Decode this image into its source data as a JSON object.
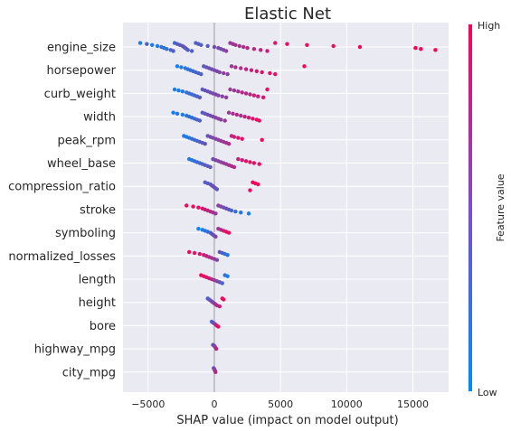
{
  "chart_data": {
    "type": "scatter",
    "title": "Elastic Net",
    "xlabel": "SHAP value (impact on model output)",
    "xlim": [
      -6900,
      17700
    ],
    "xticks": [
      -5000,
      0,
      5000,
      10000,
      15000
    ],
    "xtick_labels": [
      "−5000",
      "0",
      "5000",
      "10000",
      "15000"
    ],
    "grid": true,
    "colorbar": {
      "label": "Feature value",
      "high_label": "High",
      "low_label": "Low",
      "low_color": "#008bfb",
      "high_color": "#ff0052"
    },
    "features": [
      {
        "name": "engine_size",
        "points": [
          [
            -5600,
            0.1
          ],
          [
            -5100,
            0.3
          ],
          [
            -4700,
            0.1
          ],
          [
            -4300,
            0.1
          ],
          [
            -4000,
            0.2
          ],
          [
            -3800,
            0.15
          ],
          [
            -3600,
            0.2
          ],
          [
            -3300,
            0.3
          ],
          [
            -3100,
            0.3
          ],
          [
            -3000,
            0.2
          ],
          [
            -2800,
            0.35
          ],
          [
            -2600,
            0.35
          ],
          [
            -2400,
            0.4
          ],
          [
            -2300,
            0.4
          ],
          [
            -2200,
            0.4
          ],
          [
            -2100,
            0.3
          ],
          [
            -2000,
            0.35
          ],
          [
            -1700,
            0.3
          ],
          [
            -1400,
            0.3
          ],
          [
            -1200,
            0.35
          ],
          [
            -1000,
            0.3
          ],
          [
            -500,
            0.35
          ],
          [
            0,
            0.45
          ],
          [
            300,
            0.45
          ],
          [
            500,
            0.45
          ],
          [
            700,
            0.5
          ],
          [
            900,
            0.55
          ],
          [
            1200,
            0.6
          ],
          [
            1400,
            0.6
          ],
          [
            1600,
            0.65
          ],
          [
            1900,
            0.65
          ],
          [
            2200,
            0.65
          ],
          [
            2500,
            0.7
          ],
          [
            3000,
            0.75
          ],
          [
            3500,
            0.75
          ],
          [
            4000,
            0.8
          ],
          [
            4600,
            0.85
          ],
          [
            5500,
            0.9
          ],
          [
            7000,
            0.9
          ],
          [
            9000,
            0.95
          ],
          [
            11000,
            0.95
          ],
          [
            15200,
            1.0
          ],
          [
            15600,
            1.0
          ],
          [
            16700,
            1.0
          ]
        ]
      },
      {
        "name": "horsepower",
        "points": [
          [
            -2800,
            0.1
          ],
          [
            -2500,
            0.1
          ],
          [
            -2200,
            0.15
          ],
          [
            -2000,
            0.2
          ],
          [
            -1800,
            0.2
          ],
          [
            -1600,
            0.25
          ],
          [
            -1400,
            0.25
          ],
          [
            -1200,
            0.3
          ],
          [
            -1000,
            0.3
          ],
          [
            -800,
            0.35
          ],
          [
            -600,
            0.4
          ],
          [
            -400,
            0.4
          ],
          [
            -200,
            0.45
          ],
          [
            0,
            0.45
          ],
          [
            200,
            0.5
          ],
          [
            400,
            0.5
          ],
          [
            700,
            0.55
          ],
          [
            1000,
            0.55
          ],
          [
            1300,
            0.6
          ],
          [
            1600,
            0.65
          ],
          [
            2000,
            0.7
          ],
          [
            2400,
            0.75
          ],
          [
            2800,
            0.75
          ],
          [
            3200,
            0.8
          ],
          [
            3600,
            0.85
          ],
          [
            4200,
            0.9
          ],
          [
            4600,
            0.9
          ],
          [
            6800,
            1.0
          ]
        ]
      },
      {
        "name": "curb_weight",
        "points": [
          [
            -3000,
            0.1
          ],
          [
            -2700,
            0.1
          ],
          [
            -2400,
            0.15
          ],
          [
            -2100,
            0.2
          ],
          [
            -1900,
            0.2
          ],
          [
            -1700,
            0.25
          ],
          [
            -1500,
            0.25
          ],
          [
            -1300,
            0.3
          ],
          [
            -1100,
            0.35
          ],
          [
            -900,
            0.35
          ],
          [
            -700,
            0.4
          ],
          [
            -500,
            0.4
          ],
          [
            -300,
            0.45
          ],
          [
            -100,
            0.45
          ],
          [
            100,
            0.5
          ],
          [
            300,
            0.5
          ],
          [
            600,
            0.55
          ],
          [
            900,
            0.55
          ],
          [
            1200,
            0.6
          ],
          [
            1500,
            0.6
          ],
          [
            1800,
            0.65
          ],
          [
            2100,
            0.7
          ],
          [
            2400,
            0.7
          ],
          [
            2700,
            0.75
          ],
          [
            3000,
            0.8
          ],
          [
            3300,
            0.8
          ],
          [
            3700,
            0.85
          ],
          [
            4000,
            0.9
          ]
        ]
      },
      {
        "name": "width",
        "points": [
          [
            -3100,
            0.1
          ],
          [
            -2800,
            0.15
          ],
          [
            -2400,
            0.1
          ],
          [
            -2100,
            0.15
          ],
          [
            -1900,
            0.2
          ],
          [
            -1700,
            0.2
          ],
          [
            -1500,
            0.25
          ],
          [
            -1300,
            0.3
          ],
          [
            -1100,
            0.3
          ],
          [
            -900,
            0.35
          ],
          [
            -700,
            0.4
          ],
          [
            -500,
            0.4
          ],
          [
            -300,
            0.45
          ],
          [
            -100,
            0.5
          ],
          [
            100,
            0.5
          ],
          [
            300,
            0.55
          ],
          [
            500,
            0.55
          ],
          [
            800,
            0.6
          ],
          [
            1100,
            0.6
          ],
          [
            1400,
            0.65
          ],
          [
            1700,
            0.7
          ],
          [
            2000,
            0.7
          ],
          [
            2300,
            0.75
          ],
          [
            2600,
            0.8
          ],
          [
            2900,
            0.85
          ],
          [
            3200,
            0.9
          ],
          [
            3400,
            0.9
          ]
        ]
      },
      {
        "name": "peak_rpm",
        "points": [
          [
            -2300,
            0.1
          ],
          [
            -2100,
            0.1
          ],
          [
            -1900,
            0.15
          ],
          [
            -1700,
            0.2
          ],
          [
            -1500,
            0.25
          ],
          [
            -1300,
            0.3
          ],
          [
            -1100,
            0.3
          ],
          [
            -900,
            0.35
          ],
          [
            -700,
            0.4
          ],
          [
            -500,
            0.4
          ],
          [
            -300,
            0.45
          ],
          [
            -100,
            0.5
          ],
          [
            100,
            0.5
          ],
          [
            300,
            0.55
          ],
          [
            500,
            0.6
          ],
          [
            700,
            0.6
          ],
          [
            900,
            0.65
          ],
          [
            1100,
            0.7
          ],
          [
            1300,
            0.75
          ],
          [
            1500,
            0.8
          ],
          [
            1800,
            0.85
          ],
          [
            2100,
            0.9
          ],
          [
            3600,
            0.95
          ]
        ]
      },
      {
        "name": "wheel_base",
        "points": [
          [
            -1900,
            0.1
          ],
          [
            -1700,
            0.15
          ],
          [
            -1500,
            0.2
          ],
          [
            -1300,
            0.25
          ],
          [
            -1100,
            0.25
          ],
          [
            -900,
            0.3
          ],
          [
            -700,
            0.35
          ],
          [
            -500,
            0.35
          ],
          [
            -300,
            0.4
          ],
          [
            -100,
            0.45
          ],
          [
            100,
            0.5
          ],
          [
            300,
            0.5
          ],
          [
            500,
            0.55
          ],
          [
            700,
            0.6
          ],
          [
            900,
            0.6
          ],
          [
            1100,
            0.65
          ],
          [
            1300,
            0.7
          ],
          [
            1500,
            0.7
          ],
          [
            1800,
            0.75
          ],
          [
            2100,
            0.8
          ],
          [
            2400,
            0.85
          ],
          [
            2700,
            0.9
          ],
          [
            3000,
            0.9
          ],
          [
            3400,
            0.95
          ]
        ]
      },
      {
        "name": "compression_ratio",
        "points": [
          [
            -700,
            0.3
          ],
          [
            -500,
            0.35
          ],
          [
            -300,
            0.35
          ],
          [
            -200,
            0.4
          ],
          [
            -100,
            0.4
          ],
          [
            0,
            0.45
          ],
          [
            100,
            0.4
          ],
          [
            200,
            0.35
          ],
          [
            2700,
            0.95
          ],
          [
            2900,
            0.95
          ],
          [
            3100,
            0.95
          ],
          [
            3300,
            0.95
          ]
        ]
      },
      {
        "name": "stroke",
        "points": [
          [
            -2100,
            0.95
          ],
          [
            -1600,
            0.9
          ],
          [
            -1200,
            0.9
          ],
          [
            -900,
            0.85
          ],
          [
            -700,
            0.8
          ],
          [
            -500,
            0.75
          ],
          [
            -300,
            0.7
          ],
          [
            -100,
            0.65
          ],
          [
            100,
            0.6
          ],
          [
            300,
            0.55
          ],
          [
            500,
            0.5
          ],
          [
            700,
            0.45
          ],
          [
            900,
            0.4
          ],
          [
            1100,
            0.35
          ],
          [
            1300,
            0.3
          ],
          [
            1600,
            0.2
          ],
          [
            2000,
            0.15
          ],
          [
            2600,
            0.1
          ]
        ]
      },
      {
        "name": "symboling",
        "points": [
          [
            -1200,
            0.05
          ],
          [
            -900,
            0.1
          ],
          [
            -700,
            0.15
          ],
          [
            -500,
            0.2
          ],
          [
            -300,
            0.3
          ],
          [
            -200,
            0.35
          ],
          [
            -100,
            0.4
          ],
          [
            0,
            0.45
          ],
          [
            100,
            0.5
          ],
          [
            300,
            0.6
          ],
          [
            500,
            0.7
          ],
          [
            700,
            0.8
          ],
          [
            900,
            0.9
          ],
          [
            1100,
            0.95
          ]
        ]
      },
      {
        "name": "normalized_losses",
        "points": [
          [
            -1900,
            0.95
          ],
          [
            -1500,
            0.9
          ],
          [
            -1100,
            0.85
          ],
          [
            -800,
            0.8
          ],
          [
            -600,
            0.75
          ],
          [
            -400,
            0.7
          ],
          [
            -200,
            0.65
          ],
          [
            0,
            0.6
          ],
          [
            200,
            0.5
          ],
          [
            400,
            0.4
          ],
          [
            600,
            0.3
          ],
          [
            800,
            0.2
          ],
          [
            1000,
            0.15
          ]
        ]
      },
      {
        "name": "length",
        "points": [
          [
            -1000,
            0.95
          ],
          [
            -800,
            0.9
          ],
          [
            -600,
            0.85
          ],
          [
            -400,
            0.8
          ],
          [
            -200,
            0.7
          ],
          [
            0,
            0.6
          ],
          [
            200,
            0.5
          ],
          [
            400,
            0.4
          ],
          [
            600,
            0.3
          ],
          [
            800,
            0.2
          ],
          [
            1000,
            0.1
          ]
        ]
      },
      {
        "name": "height",
        "points": [
          [
            -500,
            0.3
          ],
          [
            -400,
            0.35
          ],
          [
            -300,
            0.4
          ],
          [
            -200,
            0.45
          ],
          [
            -100,
            0.5
          ],
          [
            0,
            0.55
          ],
          [
            100,
            0.6
          ],
          [
            200,
            0.7
          ],
          [
            400,
            0.8
          ],
          [
            600,
            0.9
          ],
          [
            700,
            0.95
          ]
        ]
      },
      {
        "name": "bore",
        "points": [
          [
            -200,
            0.3
          ],
          [
            -100,
            0.4
          ],
          [
            0,
            0.5
          ],
          [
            100,
            0.6
          ],
          [
            200,
            0.8
          ],
          [
            300,
            0.9
          ]
        ]
      },
      {
        "name": "highway_mpg",
        "points": [
          [
            -100,
            0.4
          ],
          [
            0,
            0.5
          ],
          [
            50,
            0.55
          ],
          [
            100,
            0.6
          ],
          [
            150,
            0.7
          ]
        ]
      },
      {
        "name": "city_mpg",
        "points": [
          [
            -50,
            0.4
          ],
          [
            0,
            0.5
          ],
          [
            30,
            0.55
          ],
          [
            60,
            0.6
          ],
          [
            90,
            0.7
          ]
        ]
      }
    ]
  }
}
